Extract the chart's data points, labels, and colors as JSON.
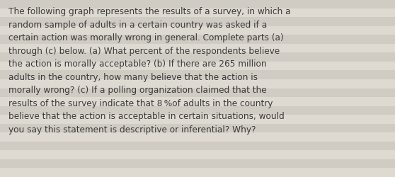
{
  "lines": [
    "The following graph represents the results of a survey, in which a",
    "random sample of adults in a certain country was asked if a",
    "certain action was morally wrong in general. Complete parts (a)",
    "through (c) below. (a) What percent of the respondents believe",
    "the action is morally acceptable? (b) If there are 265 million",
    "adults in the country, how many believe that the action is",
    "morally wrong? (c) If a polling organization claimed that the",
    "results of the survey indicate that 8 %of adults in the country",
    "believe that the action is acceptable in certain situations, would",
    "you say this statement is descriptive or inferential? Why?"
  ],
  "background_color": "#dedad2",
  "stripe_color": "#d0ccc4",
  "text_color": "#3a3a3a",
  "font_size": 8.7,
  "fig_width": 5.58,
  "fig_height": 2.51,
  "dpi": 100
}
